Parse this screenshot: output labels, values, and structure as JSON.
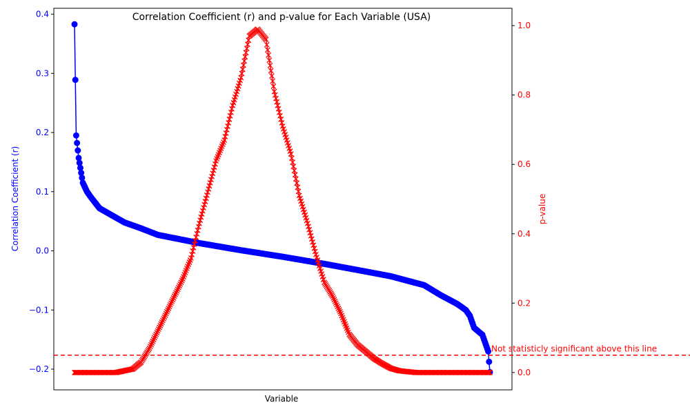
{
  "chart_data": {
    "type": "line",
    "title": "Correlation Coefficient (r) and p-value for Each Variable (USA)",
    "xlabel": "Variable",
    "ylabel_left": "Correlation Coefficient (r)",
    "ylabel_right": "p-value",
    "ylim_left": [
      -0.235,
      0.41
    ],
    "ylim_right": [
      -0.05,
      1.05
    ],
    "yticks_left": [
      -0.2,
      -0.1,
      0.0,
      0.1,
      0.2,
      0.3,
      0.4
    ],
    "yticks_right": [
      0.0,
      0.2,
      0.4,
      0.6,
      0.8,
      1.0
    ],
    "n_variables": 500,
    "grid": false,
    "colors": {
      "r": "#0000ff",
      "p": "#ff0000"
    },
    "series": [
      {
        "key": "r",
        "marker": "circle",
        "axis": "left",
        "anchors_index": [
          0,
          2,
          5,
          10,
          15,
          20,
          30,
          40,
          60,
          80,
          100,
          150,
          200,
          250,
          300,
          350,
          380,
          420,
          440,
          460,
          470,
          475,
          480,
          490,
          497,
          499
        ],
        "anchors_value": [
          0.383,
          0.195,
          0.157,
          0.115,
          0.1,
          0.09,
          0.072,
          0.064,
          0.048,
          0.038,
          0.027,
          0.013,
          0.001,
          -0.01,
          -0.022,
          -0.035,
          -0.043,
          -0.058,
          -0.075,
          -0.09,
          -0.1,
          -0.11,
          -0.13,
          -0.142,
          -0.17,
          -0.205
        ]
      },
      {
        "key": "p",
        "marker": "x",
        "axis": "right",
        "anchors_index": [
          0,
          50,
          60,
          70,
          80,
          90,
          100,
          110,
          120,
          130,
          140,
          150,
          160,
          170,
          180,
          190,
          200,
          210,
          220,
          230,
          240,
          250,
          260,
          270,
          280,
          290,
          300,
          310,
          320,
          330,
          340,
          350,
          360,
          370,
          380,
          390,
          410,
          499
        ],
        "anchors_value": [
          0.0,
          0.0,
          0.005,
          0.01,
          0.03,
          0.07,
          0.12,
          0.17,
          0.22,
          0.27,
          0.33,
          0.43,
          0.52,
          0.61,
          0.67,
          0.77,
          0.85,
          0.97,
          0.99,
          0.96,
          0.81,
          0.71,
          0.63,
          0.51,
          0.43,
          0.34,
          0.26,
          0.22,
          0.17,
          0.11,
          0.08,
          0.06,
          0.04,
          0.025,
          0.012,
          0.005,
          0.0,
          0.0
        ]
      }
    ],
    "threshold": {
      "value": 0.05,
      "axis": "right",
      "style": "dashed",
      "label": "Not statisticly significant above this line"
    }
  }
}
